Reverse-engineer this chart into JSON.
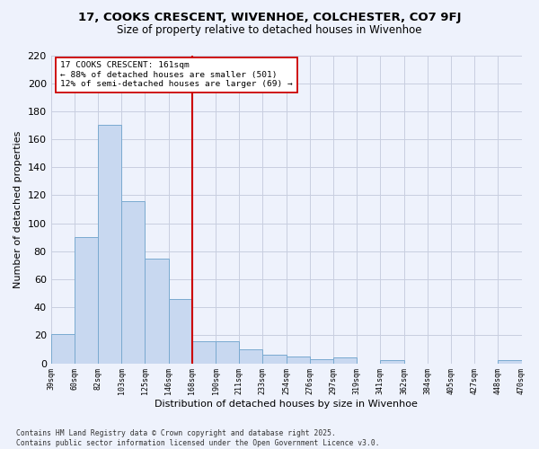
{
  "title1": "17, COOKS CRESCENT, WIVENHOE, COLCHESTER, CO7 9FJ",
  "title2": "Size of property relative to detached houses in Wivenhoe",
  "xlabel": "Distribution of detached houses by size in Wivenhoe",
  "ylabel": "Number of detached properties",
  "bin_labels": [
    "39sqm",
    "60sqm",
    "82sqm",
    "103sqm",
    "125sqm",
    "146sqm",
    "168sqm",
    "190sqm",
    "211sqm",
    "233sqm",
    "254sqm",
    "276sqm",
    "297sqm",
    "319sqm",
    "341sqm",
    "362sqm",
    "384sqm",
    "405sqm",
    "427sqm",
    "448sqm",
    "470sqm"
  ],
  "values": [
    21,
    90,
    170,
    116,
    75,
    46,
    16,
    16,
    10,
    6,
    5,
    3,
    4,
    0,
    2,
    0,
    0,
    0,
    0,
    2
  ],
  "bar_color": "#c8d8f0",
  "bar_edge_color": "#7aaad0",
  "vline_x_index": 6,
  "vline_color": "#cc0000",
  "annotation_text": "17 COOKS CRESCENT: 161sqm\n← 88% of detached houses are smaller (501)\n12% of semi-detached houses are larger (69) →",
  "annotation_box_facecolor": "#ffffff",
  "annotation_box_edgecolor": "#cc0000",
  "ylim": [
    0,
    220
  ],
  "yticks": [
    0,
    20,
    40,
    60,
    80,
    100,
    120,
    140,
    160,
    180,
    200,
    220
  ],
  "footnote": "Contains HM Land Registry data © Crown copyright and database right 2025.\nContains public sector information licensed under the Open Government Licence v3.0.",
  "bg_color": "#eef2fc",
  "grid_color": "#c8cee0"
}
